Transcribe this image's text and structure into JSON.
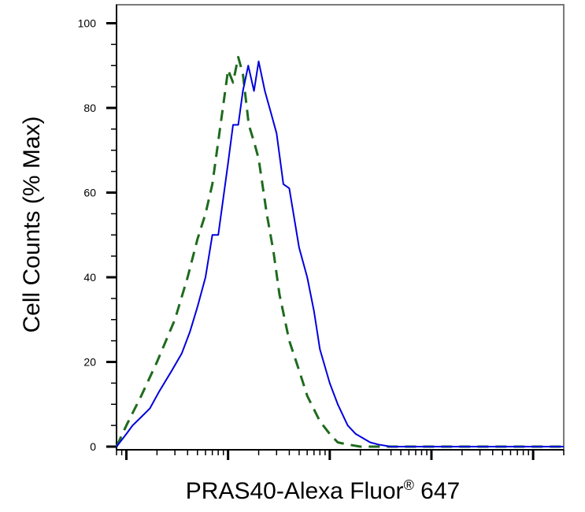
{
  "chart_data": {
    "type": "line",
    "xlabel": "PRAS40-Alexa Fluor",
    "xlabel_sup": "®",
    "xlabel_suffix": " 647",
    "ylabel": "Cell Counts (% Max)",
    "x_scale": "log",
    "xlim": [
      80,
      2000000
    ],
    "ylim": [
      0,
      105
    ],
    "y_ticks": [
      0,
      20,
      40,
      60,
      80,
      100
    ],
    "y_tick_labels": [
      "0",
      "20",
      "40",
      "60",
      "80",
      "100"
    ],
    "grid": false,
    "legend": "none",
    "series": [
      {
        "color": "#0000dd",
        "style": "solid",
        "x": [
          80,
          100,
          115,
          140,
          170,
          210,
          280,
          350,
          420,
          500,
          600,
          700,
          800,
          1000,
          1120,
          1260,
          1400,
          1580,
          1800,
          2000,
          2300,
          2630,
          3000,
          3500,
          4000,
          5000,
          6000,
          7000,
          8000,
          10000,
          12000,
          15000,
          18000,
          25000,
          30000,
          40000,
          60000,
          100000,
          300000,
          1000000,
          2000000
        ],
        "y": [
          0,
          3,
          5,
          7,
          9,
          13,
          18,
          22,
          27,
          33,
          40,
          50,
          50,
          67,
          76,
          76,
          84,
          90,
          84,
          91,
          84,
          79,
          74,
          62,
          61,
          47,
          40,
          32,
          23,
          15,
          10,
          5,
          3,
          1,
          0.5,
          0,
          0,
          0,
          0,
          0,
          0
        ]
      },
      {
        "color": "#1e6b1e",
        "style": "dashed",
        "x": [
          80,
          100,
          140,
          200,
          300,
          400,
          500,
          600,
          700,
          900,
          1000,
          1120,
          1260,
          1400,
          1600,
          1800,
          2000,
          2400,
          2800,
          3200,
          4000,
          5000,
          6000,
          8000,
          10000,
          12000,
          15000,
          20000,
          30000,
          2000000
        ],
        "y": [
          0,
          5,
          12,
          20,
          30,
          40,
          49,
          55,
          62,
          81,
          89,
          86,
          92,
          88,
          76,
          72,
          68,
          55,
          46,
          36,
          25,
          18,
          12,
          6,
          3,
          1,
          0.5,
          0,
          0,
          0
        ]
      }
    ]
  }
}
